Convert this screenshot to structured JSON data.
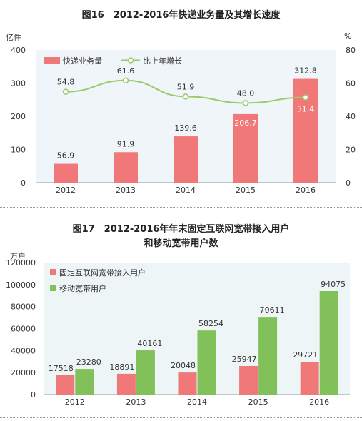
{
  "chart_data": [
    {
      "type": "bar",
      "title": "图16　2012-2016年快递业务量及其增长速度",
      "categories": [
        "2012",
        "2013",
        "2014",
        "2015",
        "2016"
      ],
      "ylabel_left": "亿件",
      "ylabel_right": "%",
      "ylim": [
        0,
        400
      ],
      "yticks": [
        "0",
        "100",
        "200",
        "300",
        "400"
      ],
      "y2lim": [
        0,
        80
      ],
      "y2ticks": [
        "0",
        "20",
        "40",
        "60",
        "80"
      ],
      "legend_position": "top-left",
      "grid": false,
      "series": [
        {
          "name": "快递业务量",
          "type": "bar",
          "axis": "left",
          "color": "#f07878",
          "values": [
            56.9,
            91.9,
            139.6,
            206.7,
            312.8
          ],
          "labels": [
            "56.9",
            "91.9",
            "139.6",
            "206.7",
            "312.8"
          ]
        },
        {
          "name": "比上年增长",
          "type": "line",
          "axis": "right",
          "color": "#9cc96b",
          "values": [
            54.8,
            61.6,
            51.9,
            48.0,
            51.4
          ],
          "labels": [
            "54.8",
            "61.6",
            "51.9",
            "48.0",
            "51.4"
          ]
        }
      ]
    },
    {
      "type": "bar",
      "title": "图17　2012-2016年年末固定互联网宽带接入用户",
      "subtitle": "和移动宽带用户数",
      "categories": [
        "2012",
        "2013",
        "2014",
        "2015",
        "2016"
      ],
      "ylabel": "万户",
      "ylim": [
        0,
        120000
      ],
      "yticks": [
        "0",
        "20000",
        "40000",
        "60000",
        "80000",
        "100000",
        "120000"
      ],
      "legend_position": "top-left",
      "grid": false,
      "series": [
        {
          "name": "固定互联网宽带接入用户",
          "color": "#f07878",
          "values": [
            17518,
            18891,
            20048,
            25947,
            29721
          ],
          "labels": [
            "17518",
            "18891",
            "20048",
            "25947",
            "29721"
          ]
        },
        {
          "name": "移动宽带用户",
          "color": "#82c05a",
          "values": [
            23280,
            40161,
            58254,
            70611,
            94075
          ],
          "labels": [
            "23280",
            "40161",
            "58254",
            "70611",
            "94075"
          ]
        }
      ]
    }
  ]
}
